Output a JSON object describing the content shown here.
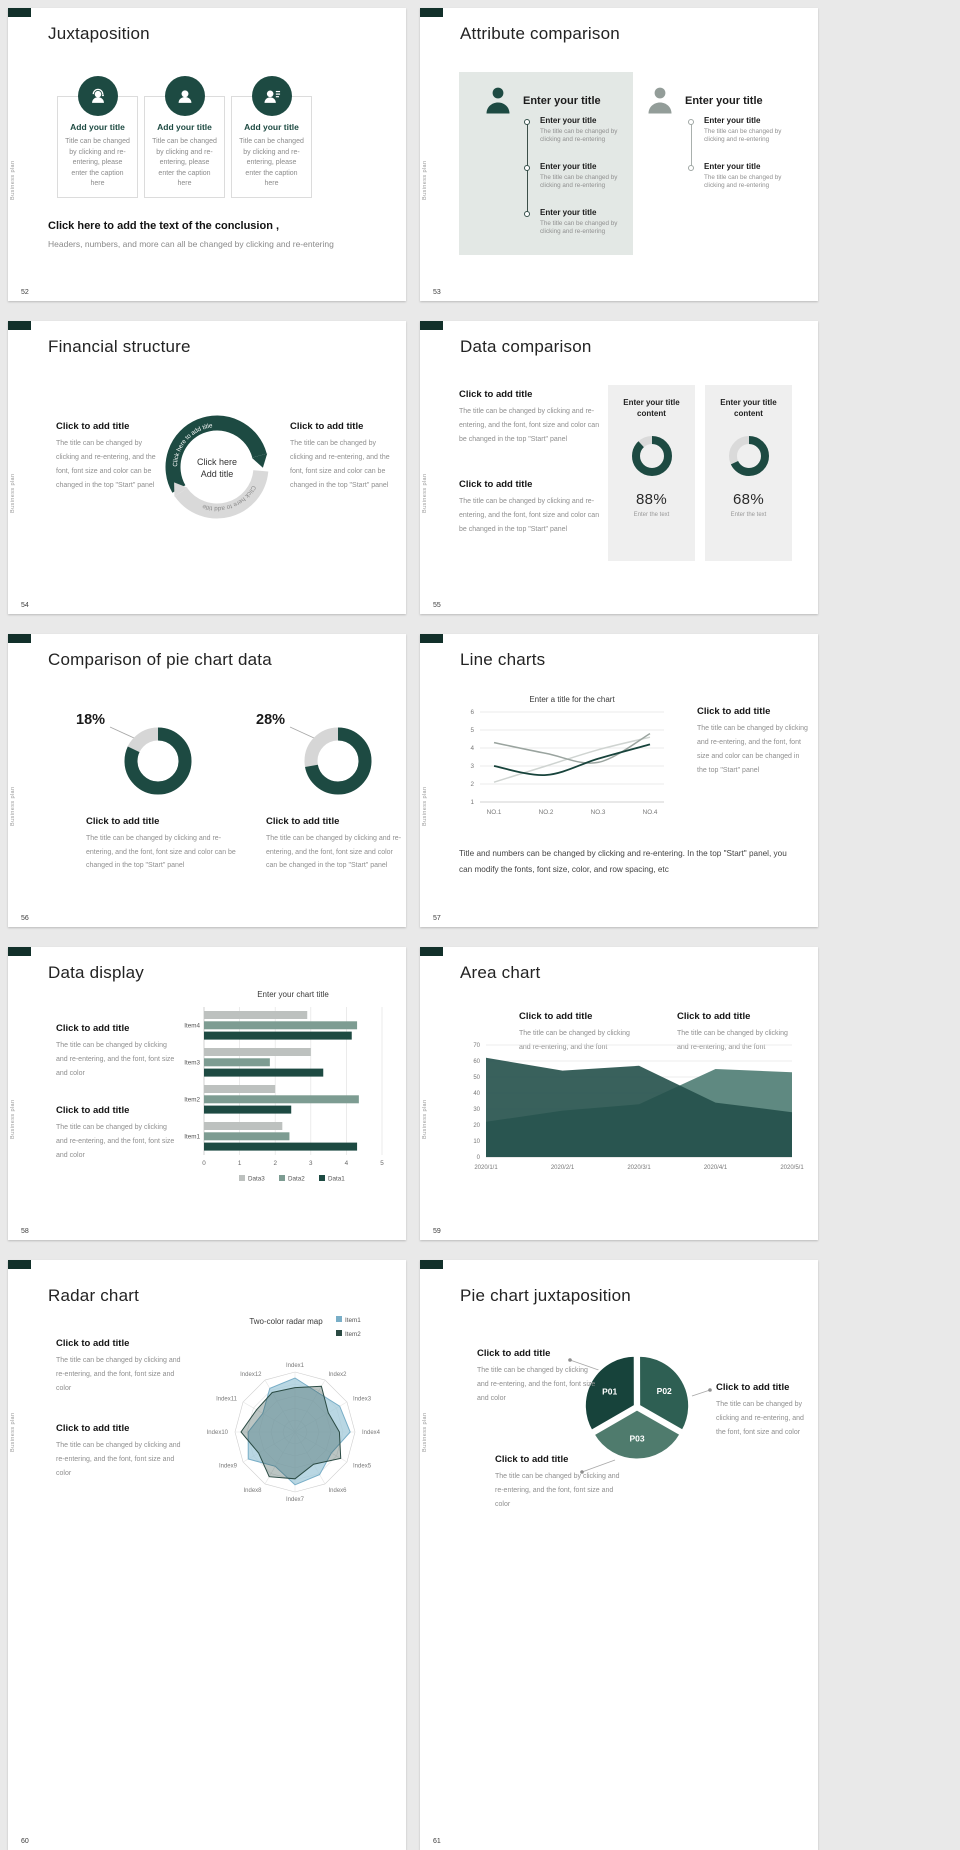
{
  "page": {
    "bg": "#e9e9e9",
    "slide_bg": "#ffffff"
  },
  "theme": {
    "dark_green": "#1d4a42",
    "sage": "#7d9c92",
    "gray": "#bdc1bf",
    "panel_bg": "#e3e8e5",
    "card_bg": "#efefef",
    "light_blue": "#79aec7"
  },
  "common": {
    "vertical_label": "Business plan"
  },
  "slides": {
    "s52": {
      "number": "52",
      "title": "Juxtaposition",
      "cards": [
        {
          "icon": "support-agent-icon",
          "label": "Add your title",
          "caption": "Title can be changed by clicking and re-entering, please enter the caption here"
        },
        {
          "icon": "person-icon",
          "label": "Add your title",
          "caption": "Title can be changed by clicking and re-entering, please enter the caption here"
        },
        {
          "icon": "person-notes-icon",
          "label": "Add your title",
          "caption": "Title can be changed by clicking and re-entering, please enter the caption here"
        }
      ],
      "conclusion_title": "Click here to add the text of the conclusion ,",
      "conclusion_text": "Headers, numbers, and more can all be changed by clicking and re-entering"
    },
    "s53": {
      "number": "53",
      "title": "Attribute comparison",
      "left_panel": {
        "header": "Enter your title",
        "items": [
          {
            "title": "Enter your title",
            "caption": "The title can be changed by clicking and re-entering"
          },
          {
            "title": "Enter your title",
            "caption": "The title can be changed by clicking and re-entering"
          },
          {
            "title": "Enter your title",
            "caption": "The title can be changed by clicking and re-entering"
          }
        ]
      },
      "right_panel": {
        "header": "Enter your title",
        "items": [
          {
            "title": "Enter your title",
            "caption": "The title can be changed by clicking and re-entering"
          },
          {
            "title": "Enter your title",
            "caption": "The title can be changed by clicking and re-entering"
          }
        ]
      }
    },
    "s54": {
      "number": "54",
      "title": "Financial structure",
      "left_block": {
        "heading": "Click to add title",
        "body": "The title can be changed by clicking and re-entering, and the font, font size and color can be changed in the top \"Start\" panel"
      },
      "right_block": {
        "heading": "Click to add title",
        "body": "The title can be changed by clicking and re-entering, and the font, font size and color can be changed in the top \"Start\" panel"
      },
      "center_line1": "Click here",
      "center_line2": "Add title",
      "arc_text_top": "Click here to add title",
      "arc_text_bottom": "Click here to add title"
    },
    "s55": {
      "number": "55",
      "title": "Data comparison",
      "blocks": [
        {
          "heading": "Click to add title",
          "body": "The title can be changed by clicking and re-entering, and the font, font size and color can be changed in the top \"Start\" panel"
        },
        {
          "heading": "Click to add title",
          "body": "The title can be changed by clicking and re-entering, and the font, font size and color can be changed in the top \"Start\" panel"
        }
      ],
      "cards": [
        {
          "header": "Enter your title content",
          "value": "88%",
          "caption": "Enter the text"
        },
        {
          "header": "Enter your title content",
          "value": "68%",
          "caption": "Enter the text"
        }
      ]
    },
    "s56": {
      "number": "56",
      "title": "Comparison of pie chart data",
      "charts": [
        {
          "pct_label": "18%",
          "heading": "Click to add title",
          "body": "The title can be changed by clicking and re-entering, and the font, font size and color can be changed in the top \"Start\" panel"
        },
        {
          "pct_label": "28%",
          "heading": "Click to add title",
          "body": "The title can be changed by clicking and re-entering, and the font, font size and color can be changed in the top \"Start\" panel"
        }
      ]
    },
    "s57": {
      "number": "57",
      "title": "Line charts",
      "block": {
        "heading": "Click to add title",
        "body": "The title can be changed by clicking and re-entering, and the font, font size and color can be changed in the top \"Start\" panel"
      },
      "note": "Title and numbers can be changed by clicking and re-entering. In the top \"Start\" panel, you can modify the fonts, font size, color, and row spacing, etc"
    },
    "s58": {
      "number": "58",
      "title": "Data display",
      "blocks": [
        {
          "heading": "Click to add title",
          "body": "The title can be changed by clicking and re-entering, and the font, font size and color"
        },
        {
          "heading": "Click to add title",
          "body": "The title can be changed by clicking and re-entering, and the font, font size and color"
        }
      ]
    },
    "s59": {
      "number": "59",
      "title": "Area chart",
      "blocks": [
        {
          "heading": "Click to add title",
          "body": "The title can be changed by clicking and re-entering, and the font"
        },
        {
          "heading": "Click to add title",
          "body": "The title can be changed by clicking and re-entering, and the font"
        }
      ]
    },
    "s60": {
      "number": "60",
      "title": "Radar chart",
      "blocks": [
        {
          "heading": "Click to add title",
          "body": "The title can be changed by clicking and re-entering, and the font, font size and color"
        },
        {
          "heading": "Click to add title",
          "body": "The title can be changed by clicking and re-entering, and the font, font size and color"
        }
      ]
    },
    "s61": {
      "number": "61",
      "title": "Pie chart juxtaposition",
      "blocks": [
        {
          "heading": "Click to add title",
          "body": "The title can be changed by clicking and re-entering, and the font, font size and color"
        },
        {
          "heading": "Click to add title",
          "body": "The title can be changed by clicking and re-entering, and the font, font size and color"
        },
        {
          "heading": "Click to add title",
          "body": "The title can be changed by clicking and re-entering, and the font, font size and color"
        }
      ]
    }
  },
  "chart_data": [
    {
      "id": "d55a",
      "type": "donut",
      "percent": 88,
      "label": "88%",
      "color": "#1d4a42",
      "track": "#dadada"
    },
    {
      "id": "d55b",
      "type": "donut",
      "percent": 68,
      "label": "68%",
      "color": "#1d4a42",
      "track": "#dadada"
    },
    {
      "id": "d56a",
      "type": "donut",
      "percent": 82,
      "label": "18%",
      "color": "#1d4a42",
      "track": "#d6d6d6"
    },
    {
      "id": "d56b",
      "type": "donut",
      "percent": 72,
      "label": "28%",
      "color": "#1d4a42",
      "track": "#d6d6d6"
    },
    {
      "id": "line57",
      "type": "line",
      "title": "Enter a title for the chart",
      "x": [
        "NO.1",
        "NO.2",
        "NO.3",
        "NO.4"
      ],
      "yticks": [
        1,
        2,
        3,
        4,
        5,
        6
      ],
      "ymin": 1,
      "ymax": 6,
      "grid": true,
      "series": [
        {
          "color": "#17433b",
          "values": [
            3.0,
            2.5,
            3.4,
            4.2
          ]
        },
        {
          "color": "#9aa49f",
          "values": [
            4.3,
            3.7,
            3.2,
            4.8
          ]
        },
        {
          "color": "#cfd4d1",
          "values": [
            2.1,
            3.0,
            3.9,
            4.6
          ]
        }
      ]
    },
    {
      "id": "bar58",
      "type": "bar-horizontal",
      "title": "Enter your chart title",
      "categories": [
        "Item1",
        "Item2",
        "Item3",
        "Item4"
      ],
      "xticks": [
        0,
        1,
        2,
        3,
        4,
        5
      ],
      "xmax": 5,
      "series": [
        {
          "name": "Data3",
          "color": "#bdc1bf",
          "values": [
            2.2,
            2.0,
            3.0,
            2.9
          ]
        },
        {
          "name": "Data2",
          "color": "#7d9c92",
          "values": [
            2.4,
            4.35,
            1.85,
            4.3
          ]
        },
        {
          "name": "Data1",
          "color": "#1d4a42",
          "values": [
            4.3,
            2.45,
            3.35,
            4.15
          ]
        }
      ],
      "legend": [
        "Data3",
        "Data2",
        "Data1"
      ],
      "legend_position": "bottom"
    },
    {
      "id": "area59",
      "type": "area",
      "x": [
        "2020/1/1",
        "2020/2/1",
        "2020/3/1",
        "2020/4/1",
        "2020/5/1"
      ],
      "yticks": [
        0,
        10,
        20,
        30,
        40,
        50,
        60,
        70
      ],
      "ymax": 70,
      "grid": true,
      "series": [
        {
          "color": "#56837a",
          "values": [
            22,
            29,
            33,
            55,
            53
          ]
        },
        {
          "color": "#23504a",
          "values": [
            62,
            54,
            57,
            34,
            28
          ]
        }
      ]
    },
    {
      "id": "radar60",
      "type": "radar",
      "title": "Two-color radar map",
      "max": 5,
      "rings": 5,
      "legend_position": "top-right",
      "axes": [
        "Index1",
        "Index2",
        "Index3",
        "Index4",
        "Index5",
        "Index6",
        "Index7",
        "Index8",
        "Index9",
        "Index10",
        "Index11",
        "Index12"
      ],
      "series": [
        {
          "name": "Item1",
          "color": "#79aec7",
          "fill": "rgba(158,199,216,0.72)",
          "values": [
            4.5,
            3.8,
            4.3,
            4.6,
            3.5,
            4.1,
            4.4,
            3.3,
            4.5,
            3.9,
            3.1,
            4.2
          ]
        },
        {
          "name": "Item2",
          "color": "#2a4a43",
          "fill": "rgba(42,74,67,0.32)",
          "values": [
            3.7,
            4.4,
            3.2,
            3.7,
            4.4,
            3.1,
            3.9,
            4.3,
            3.5,
            4.5,
            3.7,
            3.8
          ]
        }
      ]
    },
    {
      "id": "pie61",
      "type": "pie",
      "segments": [
        {
          "label": "P01",
          "value": 33.3,
          "color": "#17433b"
        },
        {
          "label": "P02",
          "value": 33.3,
          "color": "#2e5f53"
        },
        {
          "label": "P03",
          "value": 33.4,
          "color": "#4f7b6d"
        }
      ]
    }
  ]
}
